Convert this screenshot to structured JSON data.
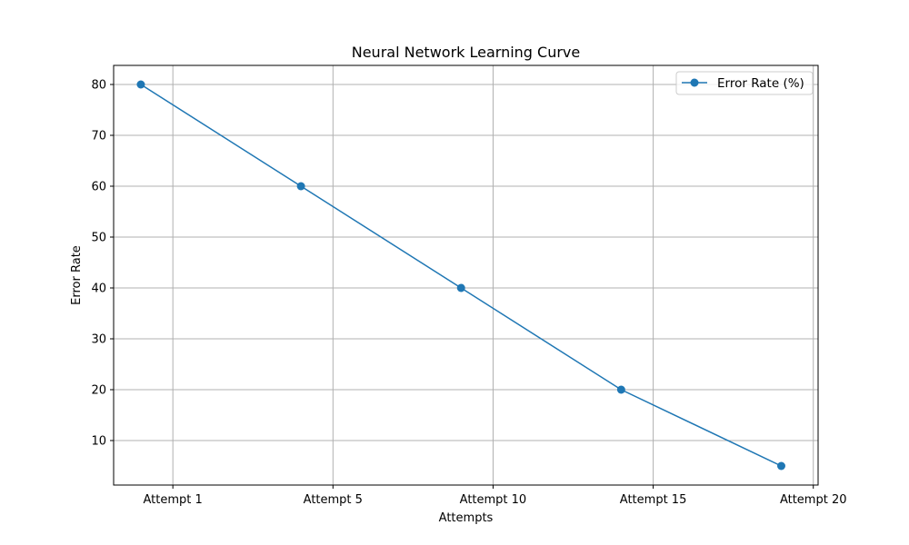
{
  "chart_data": {
    "type": "line",
    "title": "Neural Network Learning Curve",
    "xlabel": "Attempts",
    "ylabel": "Error Rate",
    "x": [
      1,
      5,
      10,
      15,
      20
    ],
    "x_ticks": [
      {
        "value": 2,
        "label": "Attempt 1"
      },
      {
        "value": 7,
        "label": "Attempt 5"
      },
      {
        "value": 12,
        "label": "Attempt 10"
      },
      {
        "value": 17,
        "label": "Attempt 15"
      },
      {
        "value": 22,
        "label": "Attempt 20"
      }
    ],
    "xlim": [
      0.15,
      22.15
    ],
    "ylim": [
      1.25,
      83.75
    ],
    "y_ticks": [
      10,
      20,
      30,
      40,
      50,
      60,
      70,
      80
    ],
    "grid": true,
    "legend_position": "top-right",
    "series": [
      {
        "name": "Error Rate (%)",
        "color": "#1f77b4",
        "marker": "circle",
        "x": [
          1,
          6,
          11,
          16,
          21
        ],
        "values": [
          80,
          60,
          40,
          20,
          5
        ]
      }
    ]
  }
}
